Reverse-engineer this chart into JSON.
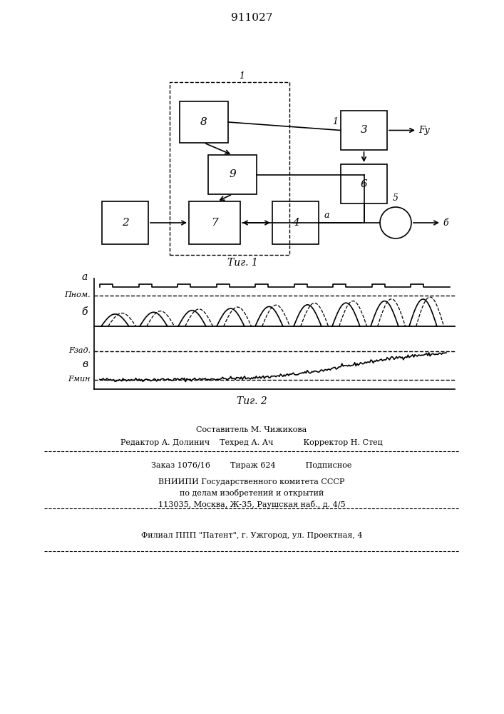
{
  "title": "911027",
  "fig1_caption": "Τиг. 1",
  "fig2_caption": "Τиг. 2",
  "label_1": "1",
  "label_2": "2",
  "label_3": "3",
  "label_4": "4",
  "label_5": "5",
  "label_6": "6",
  "label_7": "7",
  "label_8": "8",
  "label_9": "9",
  "label_a": "a",
  "label_b": "б",
  "label_Fy": "Fу",
  "label_Pnom": "Пном.",
  "label_Fzad": "Fзад.",
  "label_Fmin": "Fмин",
  "label_sig_a": "a",
  "label_sig_b": "б",
  "label_sig_v": "в",
  "footer_line1": "Составитель М. Чижикова",
  "footer_line2": "Редактор А. Долинич    Техред А. Ач            Корректор Н. Стец",
  "footer_line3": "Заказ 1076/16        Тираж 624            Подписное",
  "footer_line4": "ВНИИПИ Государственного комитета СССР",
  "footer_line5": "по делам изобретений и открытий",
  "footer_line6": "113035, Москва, Ж-35, Раушская наб., д. 4/5",
  "footer_line7": "Филиал ППП \"Патент\", г. Ужгород, ул. Проектная, 4"
}
